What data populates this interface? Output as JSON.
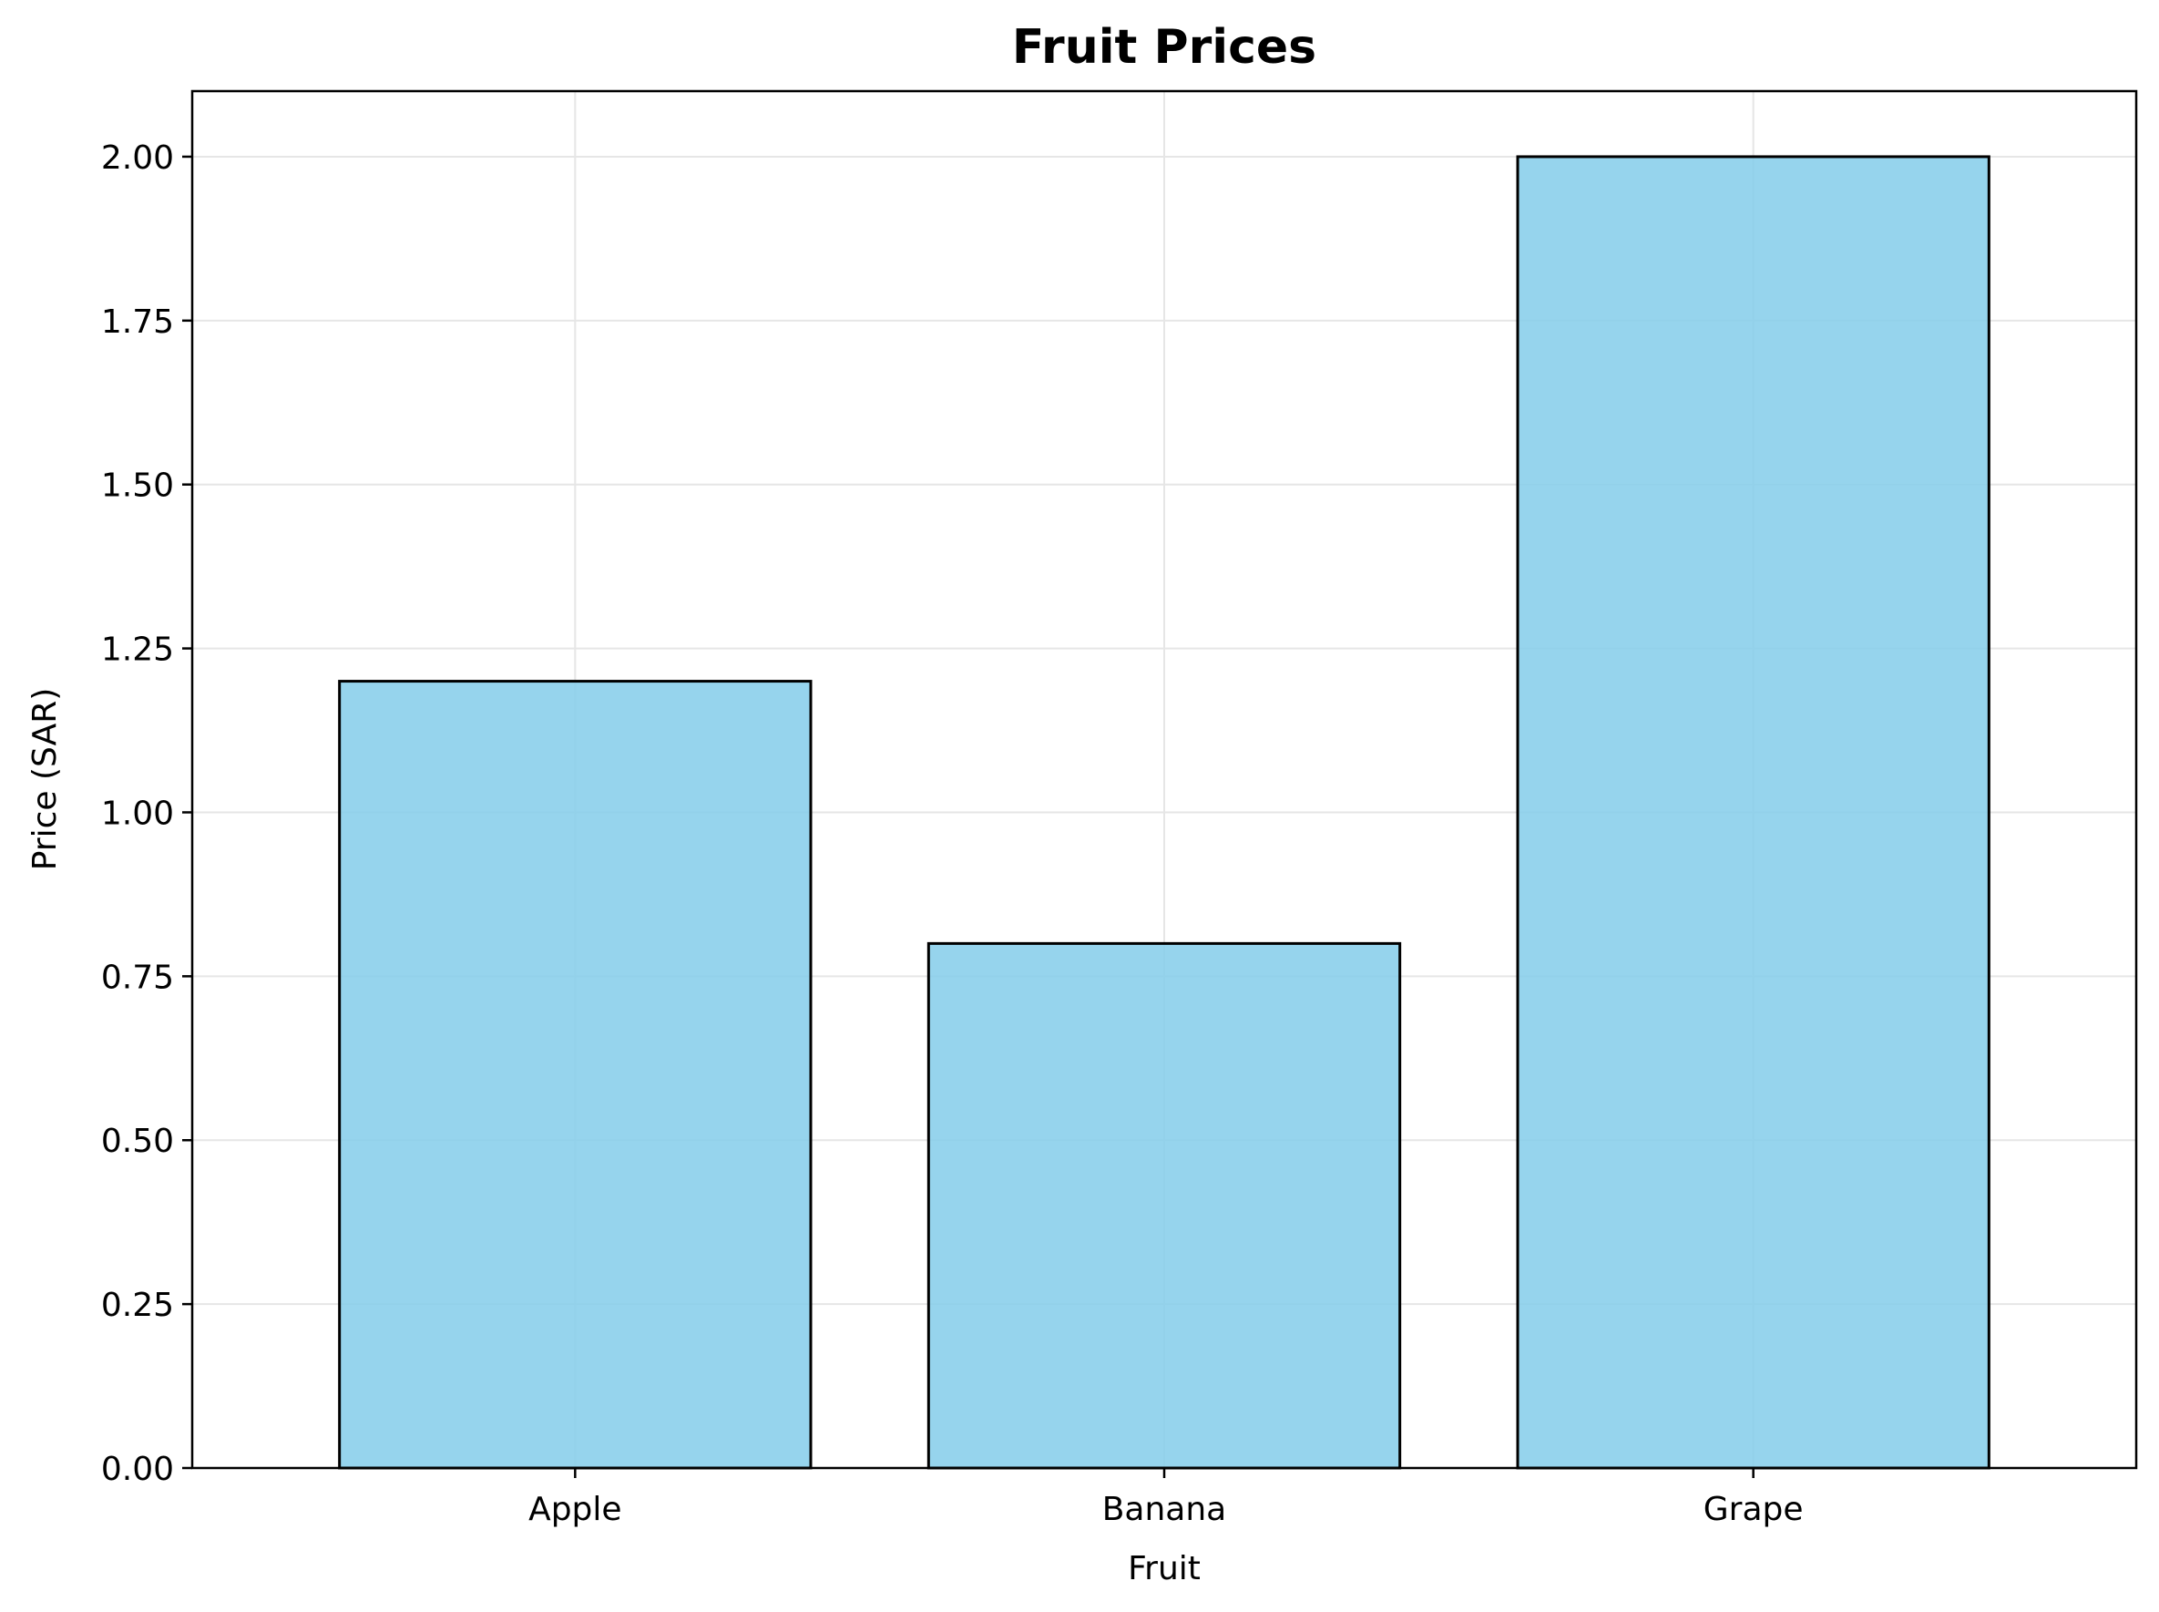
{
  "chart_data": {
    "type": "bar",
    "title": "Fruit Prices",
    "xlabel": "Fruit",
    "ylabel": "Price (SAR)",
    "categories": [
      "Apple",
      "Banana",
      "Grape"
    ],
    "values": [
      1.2,
      0.8,
      2.0
    ],
    "ylim": [
      0,
      2.1
    ],
    "yticks": [
      "0.00",
      "0.25",
      "0.50",
      "0.75",
      "1.00",
      "1.25",
      "1.50",
      "1.75",
      "2.00"
    ],
    "grid": true,
    "legend": "none",
    "colors": {
      "bar_fill": "#87ceeb",
      "bar_edge": "#000000",
      "grid": "#e6e6e6",
      "axes": "#000000"
    }
  }
}
